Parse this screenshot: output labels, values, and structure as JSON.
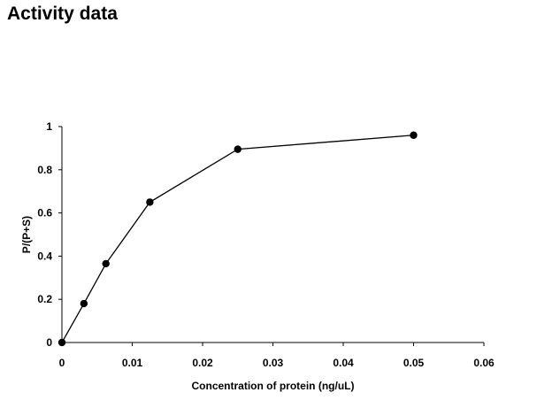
{
  "page": {
    "title": "Activity data"
  },
  "chart_data": {
    "type": "line",
    "xlabel": "Concentration of protein (ng/uL)",
    "ylabel": "P/(P+S)",
    "xlim": [
      0,
      0.06
    ],
    "ylim": [
      0,
      1
    ],
    "x_ticks": [
      "0",
      "0.01",
      "0.02",
      "0.03",
      "0.04",
      "0.05",
      "0.06"
    ],
    "y_ticks": [
      "0",
      "0.2",
      "0.4",
      "0.6",
      "0.8",
      "1"
    ],
    "grid": false,
    "legend": "none",
    "series": [
      {
        "x": [
          0,
          0.003125,
          0.00625,
          0.0125,
          0.025,
          0.05
        ],
        "y": [
          0,
          0.18,
          0.365,
          0.65,
          0.895,
          0.96
        ],
        "color": "#000000",
        "marker": "circle"
      }
    ]
  }
}
